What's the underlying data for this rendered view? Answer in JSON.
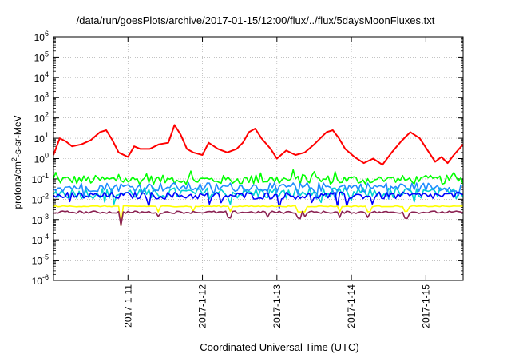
{
  "chart_data": {
    "type": "line",
    "title": "/data/run/goesPlots/archive/2017-01-15/12:00/flux/../flux/5daysMoonFluxes.txt",
    "xlabel": "Coordinated Universal Time (UTC)",
    "ylabel": {
      "pre": "protons/cm",
      "sup": "2",
      "post": "-s-sr-MeV"
    },
    "yscale": "log",
    "ylim": [
      1e-06,
      1000000.0
    ],
    "y_ticks": [
      {
        "value": 1e-06,
        "base": "10",
        "exp": "-6"
      },
      {
        "value": 1e-05,
        "base": "10",
        "exp": "-5"
      },
      {
        "value": 0.0001,
        "base": "10",
        "exp": "-4"
      },
      {
        "value": 0.001,
        "base": "10",
        "exp": "-3"
      },
      {
        "value": 0.01,
        "base": "10",
        "exp": "-2"
      },
      {
        "value": 0.1,
        "base": "10",
        "exp": "-1"
      },
      {
        "value": 1,
        "base": "10",
        "exp": "0"
      },
      {
        "value": 10,
        "base": "10",
        "exp": "1"
      },
      {
        "value": 100,
        "base": "10",
        "exp": "2"
      },
      {
        "value": 1000,
        "base": "10",
        "exp": "3"
      },
      {
        "value": 10000,
        "base": "10",
        "exp": "4"
      },
      {
        "value": 100000,
        "base": "10",
        "exp": "5"
      },
      {
        "value": 1000000,
        "base": "10",
        "exp": "6"
      }
    ],
    "xlim": [
      "2017-01-10 00:00",
      "2017-01-15 12:00"
    ],
    "x_ticks": [
      {
        "value": "2017-01-11 00:00",
        "label": "2017-1-11"
      },
      {
        "value": "2017-01-12 00:00",
        "label": "2017-1-12"
      },
      {
        "value": "2017-01-13 00:00",
        "label": "2017-1-13"
      },
      {
        "value": "2017-01-14 00:00",
        "label": "2017-1-14"
      },
      {
        "value": "2017-01-15 00:00",
        "label": "2017-1-15"
      }
    ],
    "grid": true,
    "series": [
      {
        "color": "#ff0000",
        "x": [
          "2017-01-10 00:00",
          "2017-01-10 02:00",
          "2017-01-10 04:00",
          "2017-01-10 06:00",
          "2017-01-10 09:00",
          "2017-01-10 12:00",
          "2017-01-10 15:00",
          "2017-01-10 17:00",
          "2017-01-10 19:00",
          "2017-01-10 21:00",
          "2017-01-11 00:00",
          "2017-01-11 02:00",
          "2017-01-11 04:00",
          "2017-01-11 07:00",
          "2017-01-11 10:00",
          "2017-01-11 13:00",
          "2017-01-11 15:00",
          "2017-01-11 17:00",
          "2017-01-11 19:00",
          "2017-01-11 21:00",
          "2017-01-12 00:00",
          "2017-01-12 02:00",
          "2017-01-12 05:00",
          "2017-01-12 08:00",
          "2017-01-12 11:00",
          "2017-01-12 13:00",
          "2017-01-12 15:00",
          "2017-01-12 17:00",
          "2017-01-12 19:00",
          "2017-01-12 22:00",
          "2017-01-13 00:00",
          "2017-01-13 03:00",
          "2017-01-13 06:00",
          "2017-01-13 09:00",
          "2017-01-13 12:00",
          "2017-01-13 14:00",
          "2017-01-13 16:00",
          "2017-01-13 18:00",
          "2017-01-13 20:00",
          "2017-01-13 22:00",
          "2017-01-14 01:00",
          "2017-01-14 04:00",
          "2017-01-14 07:00",
          "2017-01-14 10:00",
          "2017-01-14 13:00",
          "2017-01-14 16:00",
          "2017-01-14 19:00",
          "2017-01-14 22:00",
          "2017-01-15 01:00",
          "2017-01-15 03:00",
          "2017-01-15 05:00",
          "2017-01-15 07:00",
          "2017-01-15 09:00",
          "2017-01-15 12:00"
        ],
        "y": [
          1.5,
          10,
          7,
          4,
          5,
          8,
          20,
          25,
          8,
          2,
          1.2,
          4,
          3,
          3,
          5,
          6,
          45,
          15,
          3,
          2,
          1.5,
          6,
          3,
          2,
          3,
          6,
          20,
          30,
          10,
          3,
          1,
          2.5,
          1.5,
          2,
          5,
          10,
          20,
          25,
          10,
          3,
          1.2,
          0.6,
          1,
          0.5,
          2,
          7,
          20,
          10,
          2,
          0.7,
          1.2,
          0.6,
          1.5,
          5
        ]
      },
      {
        "color": "#00ff00",
        "base": 0.09,
        "jitter": 0.45
      },
      {
        "color": "#00d2d2",
        "base": 0.02,
        "jitter": 0.55
      },
      {
        "color": "#1e8cff",
        "base": 0.04,
        "jitter": 0.45
      },
      {
        "color": "#0000ff",
        "base": 0.015,
        "jitter": 0.35
      },
      {
        "color": "#ffff00",
        "base": 0.0045,
        "jitter": 0.05
      },
      {
        "color": "#8b2252",
        "base": 0.0023,
        "jitter": 0.12
      }
    ]
  }
}
